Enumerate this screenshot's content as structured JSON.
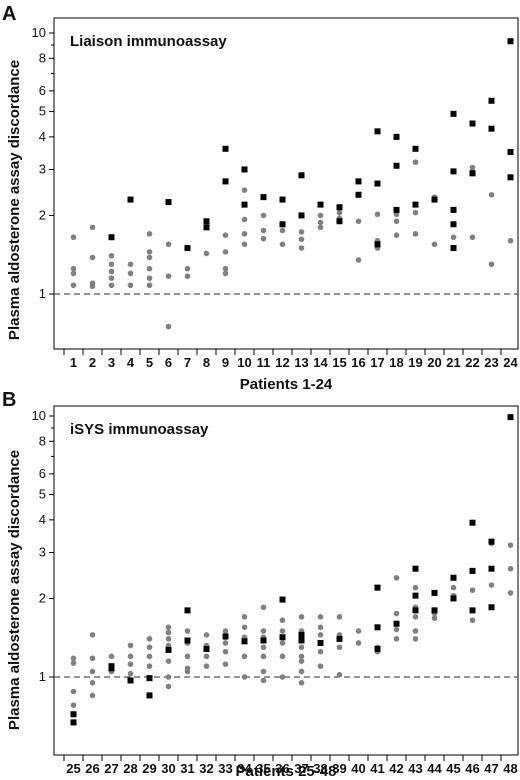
{
  "chart_data": [
    {
      "type": "scatter",
      "panel_label": "A",
      "title": "Liaison immunoassay",
      "xlabel": "Patients 1-24",
      "ylabel": "Plasma aldosterone assay discordance",
      "yscale": "log",
      "ylim": [
        0.6,
        11
      ],
      "yticks": [
        1,
        2,
        3,
        4,
        5,
        6,
        8,
        10
      ],
      "reference_line": 1,
      "categories": [
        "1",
        "2",
        "3",
        "4",
        "5",
        "6",
        "7",
        "8",
        "9",
        "10",
        "11",
        "12",
        "13",
        "14",
        "15",
        "16",
        "17",
        "18",
        "19",
        "20",
        "21",
        "22",
        "23",
        "24"
      ],
      "series": [
        {
          "color": "#808080",
          "marker": "circle",
          "points": [
            [
              "1",
              1.65
            ],
            [
              "1",
              1.25
            ],
            [
              "1",
              1.2
            ],
            [
              "1",
              1.08
            ],
            [
              "2",
              1.8
            ],
            [
              "2",
              1.38
            ],
            [
              "2",
              1.1
            ],
            [
              "2",
              1.07
            ],
            [
              "3",
              1.4
            ],
            [
              "3",
              1.3
            ],
            [
              "3",
              1.22
            ],
            [
              "3",
              1.15
            ],
            [
              "3",
              1.08
            ],
            [
              "4",
              1.3
            ],
            [
              "4",
              1.2
            ],
            [
              "4",
              1.08
            ],
            [
              "5",
              1.7
            ],
            [
              "5",
              1.45
            ],
            [
              "5",
              1.38
            ],
            [
              "5",
              1.25
            ],
            [
              "5",
              1.15
            ],
            [
              "5",
              1.08
            ],
            [
              "6",
              1.55
            ],
            [
              "6",
              1.17
            ],
            [
              "6",
              0.75
            ],
            [
              "7",
              1.25
            ],
            [
              "7",
              1.17
            ],
            [
              "8",
              1.43
            ],
            [
              "9",
              1.68
            ],
            [
              "9",
              1.45
            ],
            [
              "9",
              1.25
            ],
            [
              "9",
              1.2
            ],
            [
              "10",
              2.5
            ],
            [
              "10",
              1.93
            ],
            [
              "10",
              1.7
            ],
            [
              "10",
              1.55
            ],
            [
              "11",
              2.0
            ],
            [
              "11",
              1.75
            ],
            [
              "11",
              1.63
            ],
            [
              "12",
              1.75
            ],
            [
              "12",
              1.55
            ],
            [
              "13",
              1.73
            ],
            [
              "13",
              1.62
            ],
            [
              "13",
              1.5
            ],
            [
              "14",
              2.0
            ],
            [
              "14",
              1.88
            ],
            [
              "14",
              1.8
            ],
            [
              "15",
              2.05
            ],
            [
              "15",
              1.95
            ],
            [
              "16",
              1.9
            ],
            [
              "16",
              1.35
            ],
            [
              "17",
              2.02
            ],
            [
              "17",
              1.6
            ],
            [
              "17",
              1.5
            ],
            [
              "18",
              2.02
            ],
            [
              "18",
              1.9
            ],
            [
              "18",
              1.68
            ],
            [
              "19",
              3.2
            ],
            [
              "19",
              2.05
            ],
            [
              "19",
              1.7
            ],
            [
              "20",
              2.35
            ],
            [
              "20",
              2.3
            ],
            [
              "20",
              1.55
            ],
            [
              "21",
              2.1
            ],
            [
              "21",
              1.65
            ],
            [
              "22",
              3.05
            ],
            [
              "22",
              2.95
            ],
            [
              "22",
              1.65
            ],
            [
              "23",
              2.4
            ],
            [
              "23",
              1.3
            ],
            [
              "24",
              1.6
            ]
          ]
        },
        {
          "color": "#000000",
          "marker": "square",
          "points": [
            [
              "3",
              1.65
            ],
            [
              "4",
              2.3
            ],
            [
              "6",
              2.25
            ],
            [
              "7",
              1.5
            ],
            [
              "8",
              1.9
            ],
            [
              "8",
              1.8
            ],
            [
              "9",
              3.6
            ],
            [
              "9",
              2.7
            ],
            [
              "10",
              3.0
            ],
            [
              "10",
              2.2
            ],
            [
              "11",
              2.35
            ],
            [
              "12",
              2.3
            ],
            [
              "12",
              1.85
            ],
            [
              "13",
              2.85
            ],
            [
              "13",
              2.0
            ],
            [
              "14",
              2.2
            ],
            [
              "15",
              2.15
            ],
            [
              "15",
              1.9
            ],
            [
              "16",
              2.7
            ],
            [
              "16",
              2.4
            ],
            [
              "17",
              4.2
            ],
            [
              "17",
              2.65
            ],
            [
              "17",
              1.55
            ],
            [
              "18",
              4.0
            ],
            [
              "18",
              3.1
            ],
            [
              "18",
              2.1
            ],
            [
              "19",
              3.6
            ],
            [
              "19",
              2.2
            ],
            [
              "20",
              2.3
            ],
            [
              "21",
              4.9
            ],
            [
              "21",
              2.95
            ],
            [
              "21",
              2.1
            ],
            [
              "21",
              1.85
            ],
            [
              "21",
              1.5
            ],
            [
              "22",
              4.5
            ],
            [
              "22",
              2.9
            ],
            [
              "23",
              5.5
            ],
            [
              "23",
              4.3
            ],
            [
              "24",
              9.3
            ],
            [
              "24",
              3.5
            ],
            [
              "24",
              2.8
            ]
          ]
        }
      ]
    },
    {
      "type": "scatter",
      "panel_label": "B",
      "title": "iSYS immunoassay",
      "xlabel": "Patients 25-48",
      "ylabel": "Plasma aldosterone assay discordance",
      "yscale": "log",
      "ylim": [
        0.6,
        11
      ],
      "yticks": [
        1,
        2,
        3,
        4,
        5,
        6,
        8,
        10
      ],
      "reference_line": 1,
      "categories": [
        "25",
        "26",
        "27",
        "28",
        "29",
        "30",
        "31",
        "32",
        "33",
        "34",
        "35",
        "36",
        "37",
        "38",
        "39",
        "40",
        "41",
        "42",
        "43",
        "44",
        "45",
        "46",
        "47",
        "48"
      ],
      "series": [
        {
          "color": "#808080",
          "marker": "circle",
          "points": [
            [
              "25",
              1.18
            ],
            [
              "25",
              1.13
            ],
            [
              "25",
              0.88
            ],
            [
              "25",
              0.78
            ],
            [
              "26",
              1.45
            ],
            [
              "26",
              1.18
            ],
            [
              "26",
              1.05
            ],
            [
              "26",
              0.95
            ],
            [
              "26",
              0.85
            ],
            [
              "27",
              1.2
            ],
            [
              "27",
              1.1
            ],
            [
              "27",
              1.05
            ],
            [
              "28",
              1.32
            ],
            [
              "28",
              1.2
            ],
            [
              "28",
              1.12
            ],
            [
              "28",
              1.03
            ],
            [
              "29",
              1.4
            ],
            [
              "29",
              1.3
            ],
            [
              "29",
              1.2
            ],
            [
              "29",
              1.1
            ],
            [
              "30",
              1.55
            ],
            [
              "30",
              1.48
            ],
            [
              "30",
              1.4
            ],
            [
              "30",
              1.32
            ],
            [
              "30",
              1.15
            ],
            [
              "30",
              1.0
            ],
            [
              "30",
              0.92
            ],
            [
              "31",
              1.5
            ],
            [
              "31",
              1.35
            ],
            [
              "31",
              1.2
            ],
            [
              "31",
              1.08
            ],
            [
              "31",
              1.05
            ],
            [
              "32",
              1.45
            ],
            [
              "32",
              1.32
            ],
            [
              "32",
              1.2
            ],
            [
              "32",
              1.1
            ],
            [
              "33",
              1.5
            ],
            [
              "33",
              1.42
            ],
            [
              "33",
              1.35
            ],
            [
              "33",
              1.25
            ],
            [
              "33",
              1.12
            ],
            [
              "34",
              1.7
            ],
            [
              "34",
              1.55
            ],
            [
              "34",
              1.42
            ],
            [
              "34",
              1.2
            ],
            [
              "34",
              1.0
            ],
            [
              "35",
              1.85
            ],
            [
              "35",
              1.5
            ],
            [
              "35",
              1.42
            ],
            [
              "35",
              1.3
            ],
            [
              "35",
              1.2
            ],
            [
              "35",
              1.05
            ],
            [
              "35",
              0.97
            ],
            [
              "36",
              1.65
            ],
            [
              "36",
              1.5
            ],
            [
              "36",
              1.35
            ],
            [
              "36",
              1.2
            ],
            [
              "36",
              1.0
            ],
            [
              "37",
              1.7
            ],
            [
              "37",
              1.5
            ],
            [
              "37",
              1.4
            ],
            [
              "37",
              1.3
            ],
            [
              "37",
              1.2
            ],
            [
              "37",
              1.15
            ],
            [
              "37",
              1.05
            ],
            [
              "37",
              0.95
            ],
            [
              "38",
              1.7
            ],
            [
              "38",
              1.55
            ],
            [
              "38",
              1.45
            ],
            [
              "38",
              1.25
            ],
            [
              "38",
              1.1
            ],
            [
              "39",
              1.7
            ],
            [
              "39",
              1.45
            ],
            [
              "39",
              1.3
            ],
            [
              "39",
              1.02
            ],
            [
              "40",
              1.5
            ],
            [
              "40",
              1.35
            ],
            [
              "41",
              1.3
            ],
            [
              "41",
              1.25
            ],
            [
              "42",
              2.4
            ],
            [
              "42",
              1.75
            ],
            [
              "42",
              1.52
            ],
            [
              "42",
              1.4
            ],
            [
              "43",
              2.2
            ],
            [
              "43",
              1.85
            ],
            [
              "43",
              1.7
            ],
            [
              "43",
              1.5
            ],
            [
              "43",
              1.4
            ],
            [
              "44",
              1.75
            ],
            [
              "44",
              1.68
            ],
            [
              "45",
              2.2
            ],
            [
              "45",
              2.05
            ],
            [
              "46",
              2.15
            ],
            [
              "46",
              1.65
            ],
            [
              "47",
              3.25
            ],
            [
              "47",
              2.25
            ],
            [
              "48",
              3.2
            ],
            [
              "48",
              2.6
            ],
            [
              "48",
              2.1
            ]
          ]
        },
        {
          "color": "#000000",
          "marker": "square",
          "points": [
            [
              "25",
              0.72
            ],
            [
              "25",
              0.67
            ],
            [
              "27",
              1.1
            ],
            [
              "27",
              1.08
            ],
            [
              "28",
              0.97
            ],
            [
              "29",
              0.99
            ],
            [
              "29",
              0.85
            ],
            [
              "30",
              1.27
            ],
            [
              "31",
              1.8
            ],
            [
              "31",
              1.38
            ],
            [
              "32",
              1.28
            ],
            [
              "33",
              1.43
            ],
            [
              "34",
              1.37
            ],
            [
              "35",
              1.38
            ],
            [
              "36",
              1.98
            ],
            [
              "36",
              1.42
            ],
            [
              "37",
              1.45
            ],
            [
              "37",
              1.38
            ],
            [
              "38",
              1.35
            ],
            [
              "39",
              1.4
            ],
            [
              "41",
              2.2
            ],
            [
              "41",
              1.55
            ],
            [
              "41",
              1.28
            ],
            [
              "42",
              1.6
            ],
            [
              "43",
              2.6
            ],
            [
              "43",
              2.05
            ],
            [
              "43",
              1.8
            ],
            [
              "44",
              2.1
            ],
            [
              "44",
              1.8
            ],
            [
              "45",
              2.4
            ],
            [
              "45",
              2.0
            ],
            [
              "46",
              3.9
            ],
            [
              "46",
              2.55
            ],
            [
              "46",
              1.8
            ],
            [
              "47",
              3.3
            ],
            [
              "47",
              2.6
            ],
            [
              "47",
              1.85
            ],
            [
              "48",
              9.9
            ]
          ]
        }
      ]
    }
  ]
}
